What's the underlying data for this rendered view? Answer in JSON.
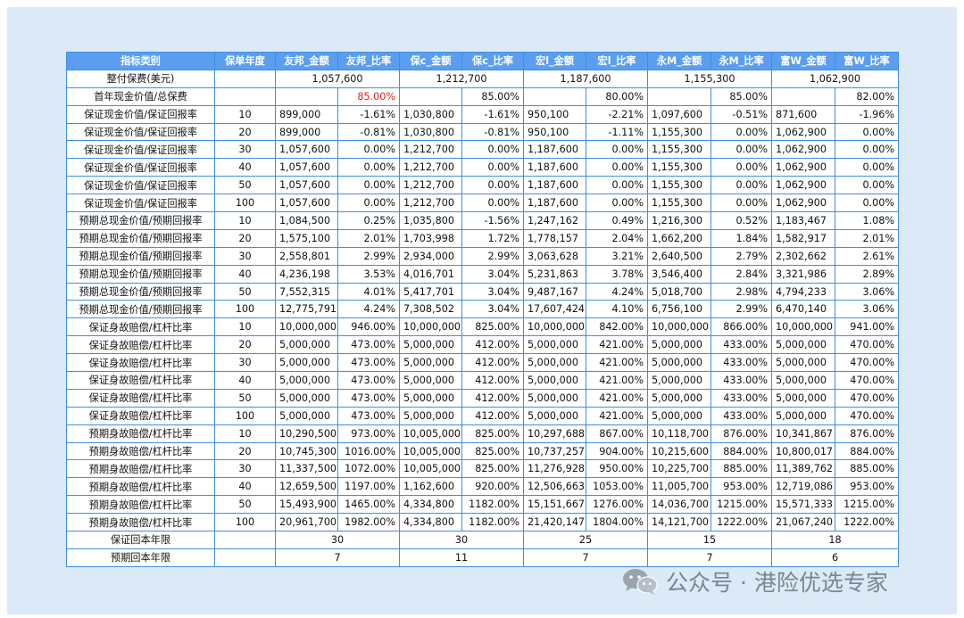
{
  "headers": [
    "指标类别",
    "保单年度",
    "友邦_金额",
    "友邦_比率",
    "保c_金额",
    "保c_比率",
    "宏l_金额",
    "宏l_比率",
    "永M_金额",
    "永M_比率",
    "富W_金额",
    "富W_比率"
  ],
  "premium": {
    "label": "整付保费(美元)",
    "values": [
      "1,057,600",
      "1,212,700",
      "1,187,600",
      "1,155,300",
      "1,062,900"
    ]
  },
  "first_year": {
    "label": "首年现金价值/总保费",
    "values": [
      "85.00%",
      "85.00%",
      "80.00%",
      "85.00%",
      "82.00%"
    ]
  },
  "rows": [
    {
      "cat": "保证现金价值/保证回报率",
      "yr": "10",
      "cells": [
        "899,000",
        "-1.61%",
        "1,030,800",
        "-1.61%",
        "950,100",
        "-2.21%",
        "1,097,600",
        "-0.51%",
        "871,600",
        "-1.96%"
      ]
    },
    {
      "cat": "保证现金价值/保证回报率",
      "yr": "20",
      "cells": [
        "899,000",
        "-0.81%",
        "1,030,800",
        "-0.81%",
        "950,100",
        "-1.11%",
        "1,155,300",
        "0.00%",
        "1,062,900",
        "0.00%"
      ]
    },
    {
      "cat": "保证现金价值/保证回报率",
      "yr": "30",
      "cells": [
        "1,057,600",
        "0.00%",
        "1,212,700",
        "0.00%",
        "1,187,600",
        "0.00%",
        "1,155,300",
        "0.00%",
        "1,062,900",
        "0.00%"
      ]
    },
    {
      "cat": "保证现金价值/保证回报率",
      "yr": "40",
      "cells": [
        "1,057,600",
        "0.00%",
        "1,212,700",
        "0.00%",
        "1,187,600",
        "0.00%",
        "1,155,300",
        "0.00%",
        "1,062,900",
        "0.00%"
      ]
    },
    {
      "cat": "保证现金价值/保证回报率",
      "yr": "50",
      "cells": [
        "1,057,600",
        "0.00%",
        "1,212,700",
        "0.00%",
        "1,187,600",
        "0.00%",
        "1,155,300",
        "0.00%",
        "1,062,900",
        "0.00%"
      ]
    },
    {
      "cat": "保证现金价值/保证回报率",
      "yr": "100",
      "cells": [
        "1,057,600",
        "0.00%",
        "1,212,700",
        "0.00%",
        "1,187,600",
        "0.00%",
        "1,155,300",
        "0.00%",
        "1,062,900",
        "0.00%"
      ]
    },
    {
      "cat": "预期总现金价值/预期回报率",
      "yr": "10",
      "cells": [
        "1,084,500",
        "0.25%",
        "1,035,800",
        "-1.56%",
        "1,247,162",
        "0.49%",
        "1,216,300",
        "0.52%",
        "1,183,467",
        "1.08%"
      ]
    },
    {
      "cat": "预期总现金价值/预期回报率",
      "yr": "20",
      "cells": [
        "1,575,100",
        "2.01%",
        "1,703,998",
        "1.72%",
        "1,778,157",
        "2.04%",
        "1,662,200",
        "1.84%",
        "1,582,917",
        "2.01%"
      ]
    },
    {
      "cat": "预期总现金价值/预期回报率",
      "yr": "30",
      "cells": [
        "2,558,801",
        "2.99%",
        "2,934,000",
        "2.99%",
        "3,063,628",
        "3.21%",
        "2,640,500",
        "2.79%",
        "2,302,662",
        "2.61%"
      ]
    },
    {
      "cat": "预期总现金价值/预期回报率",
      "yr": "40",
      "cells": [
        "4,236,198",
        "3.53%",
        "4,016,701",
        "3.04%",
        "5,231,863",
        "3.78%",
        "3,546,400",
        "2.84%",
        "3,321,986",
        "2.89%"
      ]
    },
    {
      "cat": "预期总现金价值/预期回报率",
      "yr": "50",
      "cells": [
        "7,552,315",
        "4.01%",
        "5,417,701",
        "3.04%",
        "9,487,167",
        "4.24%",
        "5,018,700",
        "2.98%",
        "4,794,233",
        "3.06%"
      ]
    },
    {
      "cat": "预期总现金价值/预期回报率",
      "yr": "100",
      "cells": [
        "12,775,791",
        "4.24%",
        "7,308,502",
        "3.04%",
        "17,607,424",
        "4.10%",
        "6,756,100",
        "2.99%",
        "6,470,140",
        "3.06%"
      ]
    },
    {
      "cat": "保证身故赔偿/杠杆比率",
      "yr": "10",
      "cells": [
        "10,000,000",
        "946.00%",
        "10,000,000",
        "825.00%",
        "10,000,000",
        "842.00%",
        "10,000,000",
        "866.00%",
        "10,000,000",
        "941.00%"
      ]
    },
    {
      "cat": "保证身故赔偿/杠杆比率",
      "yr": "20",
      "cells": [
        "5,000,000",
        "473.00%",
        "5,000,000",
        "412.00%",
        "5,000,000",
        "421.00%",
        "5,000,000",
        "433.00%",
        "5,000,000",
        "470.00%"
      ]
    },
    {
      "cat": "保证身故赔偿/杠杆比率",
      "yr": "30",
      "cells": [
        "5,000,000",
        "473.00%",
        "5,000,000",
        "412.00%",
        "5,000,000",
        "421.00%",
        "5,000,000",
        "433.00%",
        "5,000,000",
        "470.00%"
      ]
    },
    {
      "cat": "保证身故赔偿/杠杆比率",
      "yr": "40",
      "cells": [
        "5,000,000",
        "473.00%",
        "5,000,000",
        "412.00%",
        "5,000,000",
        "421.00%",
        "5,000,000",
        "433.00%",
        "5,000,000",
        "470.00%"
      ]
    },
    {
      "cat": "保证身故赔偿/杠杆比率",
      "yr": "50",
      "cells": [
        "5,000,000",
        "473.00%",
        "5,000,000",
        "412.00%",
        "5,000,000",
        "421.00%",
        "5,000,000",
        "433.00%",
        "5,000,000",
        "470.00%"
      ]
    },
    {
      "cat": "保证身故赔偿/杠杆比率",
      "yr": "100",
      "cells": [
        "5,000,000",
        "473.00%",
        "5,000,000",
        "412.00%",
        "5,000,000",
        "421.00%",
        "5,000,000",
        "433.00%",
        "5,000,000",
        "470.00%"
      ]
    },
    {
      "cat": "预期身故赔偿/杠杆比率",
      "yr": "10",
      "cells": [
        "10,290,500",
        "973.00%",
        "10,005,000",
        "825.00%",
        "10,297,688",
        "867.00%",
        "10,118,700",
        "876.00%",
        "10,341,867",
        "876.00%"
      ]
    },
    {
      "cat": "预期身故赔偿/杠杆比率",
      "yr": "20",
      "cells": [
        "10,745,300",
        "1016.00%",
        "10,005,000",
        "825.00%",
        "10,737,257",
        "904.00%",
        "10,215,600",
        "884.00%",
        "10,800,017",
        "884.00%"
      ]
    },
    {
      "cat": "预期身故赔偿/杠杆比率",
      "yr": "30",
      "cells": [
        "11,337,500",
        "1072.00%",
        "10,005,000",
        "825.00%",
        "11,276,928",
        "950.00%",
        "10,225,700",
        "885.00%",
        "11,389,762",
        "885.00%"
      ]
    },
    {
      "cat": "预期身故赔偿/杠杆比率",
      "yr": "40",
      "cells": [
        "12,659,500",
        "1197.00%",
        "1,162,600",
        "920.00%",
        "12,506,663",
        "1053.00%",
        "11,005,700",
        "953.00%",
        "12,719,086",
        "953.00%"
      ]
    },
    {
      "cat": "预期身故赔偿/杠杆比率",
      "yr": "50",
      "cells": [
        "15,493,900",
        "1465.00%",
        "4,334,800",
        "1182.00%",
        "15,151,667",
        "1276.00%",
        "14,036,700",
        "1215.00%",
        "15,571,333",
        "1215.00%"
      ]
    },
    {
      "cat": "预期身故赔偿/杠杆比率",
      "yr": "100",
      "cells": [
        "20,961,700",
        "1982.00%",
        "4,334,800",
        "1182.00%",
        "21,420,147",
        "1804.00%",
        "14,121,700",
        "1222.00%",
        "21,067,240",
        "1222.00%"
      ]
    }
  ],
  "breakeven_guaranteed": {
    "label": "保证回本年限",
    "values": [
      "30",
      "30",
      "25",
      "15",
      "18"
    ]
  },
  "breakeven_expected": {
    "label": "预期回本年限",
    "values": [
      "7",
      "11",
      "7",
      "7",
      "6"
    ]
  },
  "watermark": {
    "text": "公众号 · 港险优选专家",
    "icon": "wechat-icon"
  },
  "colors": {
    "header_bg": "#5b9ef0",
    "border": "#3d8fe0",
    "panel_bg": "#dce9f6",
    "highlight_red": "#e02020"
  }
}
